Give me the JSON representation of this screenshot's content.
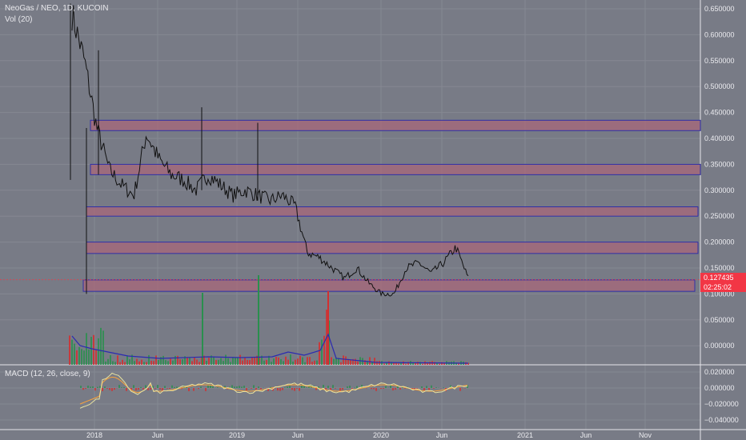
{
  "header": {
    "title": "NeoGas / NEO, 1D, KUCOIN",
    "volume_label": "Vol (20)",
    "macd_label": "MACD (12, 26, close, 9)"
  },
  "price_scale": {
    "ticks": [
      "0.650000",
      "0.600000",
      "0.550000",
      "0.500000",
      "0.450000",
      "0.400000",
      "0.350000",
      "0.300000",
      "0.250000",
      "0.200000",
      "0.150000",
      "0.100000",
      "0.050000",
      "0.000000"
    ],
    "current_price": "0.127435",
    "countdown": "02:25:02"
  },
  "macd_scale": {
    "ticks": [
      "0.020000",
      "0.000000",
      "−0.020000",
      "−0.040000"
    ]
  },
  "time_axis": {
    "ticks": [
      "2018",
      "Jun",
      "2019",
      "Jun",
      "2020",
      "Jun",
      "2021",
      "Jun",
      "Nov"
    ]
  },
  "colors": {
    "background": "#787b86",
    "price_line": "#111111",
    "zone_fill": "#a8677a",
    "zone_border": "#2f2fa8",
    "volume_up": "#2a8f4e",
    "volume_down": "#d32f2f",
    "volume_ma": "#2b2bb0",
    "macd_line": "#e8e3a0",
    "signal_line": "#f9a23a",
    "current_price_tag": "#f23645"
  },
  "chart_data": {
    "type": "line",
    "title": "NeoGas / NEO, 1D, KUCOIN",
    "ylim": [
      -0.02,
      0.66
    ],
    "x": [
      "2017-12",
      "2018-01",
      "2018-02",
      "2018-03",
      "2018-04",
      "2018-05",
      "2018-06",
      "2018-07",
      "2018-08",
      "2018-09",
      "2018-10",
      "2018-11",
      "2018-12",
      "2019-01",
      "2019-02",
      "2019-03",
      "2019-04",
      "2019-05",
      "2019-06",
      "2019-07",
      "2019-08",
      "2019-09",
      "2019-10",
      "2019-11",
      "2019-12",
      "2020-01",
      "2020-02",
      "2020-03",
      "2020-04",
      "2020-05",
      "2020-06",
      "2020-07",
      "2020-08"
    ],
    "series": [
      {
        "values": [
          0.64,
          0.55,
          0.42,
          0.34,
          0.31,
          0.29,
          0.41,
          0.36,
          0.33,
          0.32,
          0.3,
          0.33,
          0.31,
          0.29,
          0.3,
          0.29,
          0.28,
          0.29,
          0.27,
          0.18,
          0.17,
          0.15,
          0.13,
          0.15,
          0.12,
          0.1,
          0.1,
          0.15,
          0.16,
          0.14,
          0.16,
          0.19,
          0.13
        ]
      }
    ],
    "resistance_zones": [
      {
        "from": 0.415,
        "to": 0.435
      },
      {
        "from": 0.33,
        "to": 0.35
      },
      {
        "from": 0.25,
        "to": 0.268
      },
      {
        "from": 0.178,
        "to": 0.2
      },
      {
        "from": 0.105,
        "to": 0.127
      }
    ],
    "grid": true,
    "legend": "none"
  }
}
